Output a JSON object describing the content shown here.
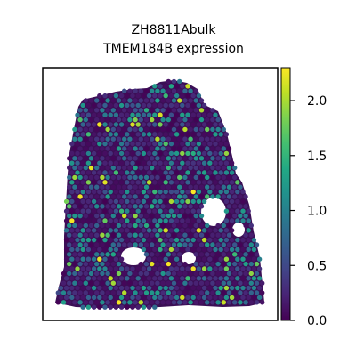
{
  "chart_data": {
    "type": "heatmap",
    "title": "ZH8811Abulk",
    "subtitle": "TMEM184B expression",
    "xlabel": "",
    "ylabel": "",
    "grid": false,
    "legend": "colorbar-right",
    "colormap": "viridis",
    "value_range": [
      0,
      2.3
    ],
    "colorbar_ticks": [
      {
        "value": 0.0,
        "label": "0.0"
      },
      {
        "value": 0.5,
        "label": "0.5"
      },
      {
        "value": 1.0,
        "label": "1.0"
      },
      {
        "value": 1.5,
        "label": "1.5"
      },
      {
        "value": 2.0,
        "label": "2.0"
      }
    ],
    "background_color": "#3b0f55",
    "spot_stats": {
      "low_fraction": 0.62,
      "mid_fraction": 0.3,
      "high_fraction": 0.08
    }
  }
}
